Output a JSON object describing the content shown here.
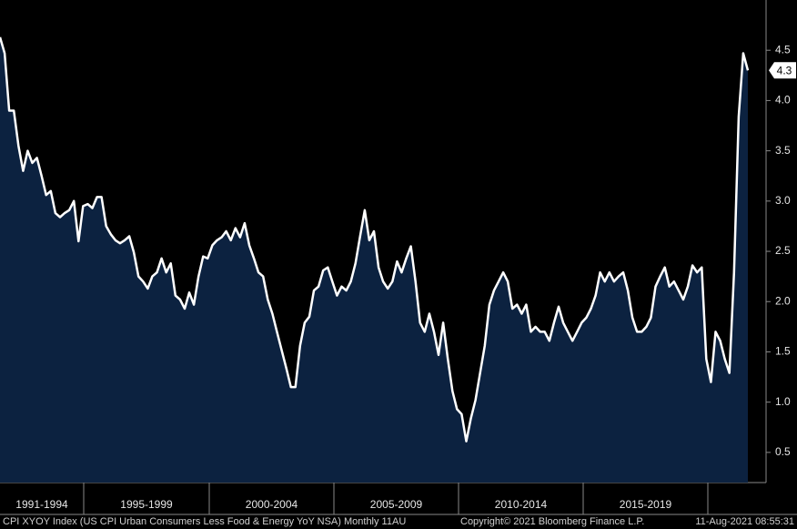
{
  "chart_data": {
    "type": "area",
    "series": [
      {
        "name": "CPI XYOY Index",
        "color": "#ffffff",
        "fill": "#0c2240",
        "values": [
          4.63,
          4.47,
          3.9,
          3.9,
          3.55,
          3.3,
          3.5,
          3.38,
          3.43,
          3.25,
          3.06,
          3.1,
          2.88,
          2.84,
          2.88,
          2.91,
          3.0,
          2.6,
          2.95,
          2.97,
          2.93,
          3.04,
          3.04,
          2.75,
          2.67,
          2.61,
          2.58,
          2.61,
          2.65,
          2.49,
          2.25,
          2.2,
          2.13,
          2.25,
          2.29,
          2.43,
          2.29,
          2.38,
          2.06,
          2.02,
          1.93,
          2.09,
          1.97,
          2.25,
          2.45,
          2.43,
          2.56,
          2.61,
          2.64,
          2.7,
          2.61,
          2.73,
          2.64,
          2.78,
          2.56,
          2.43,
          2.29,
          2.25,
          2.02,
          1.88,
          1.7,
          1.52,
          1.34,
          1.15,
          1.15,
          1.56,
          1.79,
          1.85,
          2.11,
          2.15,
          2.31,
          2.34,
          2.2,
          2.06,
          2.15,
          2.11,
          2.2,
          2.38,
          2.65,
          2.91,
          2.61,
          2.7,
          2.34,
          2.2,
          2.13,
          2.2,
          2.4,
          2.29,
          2.43,
          2.55,
          2.2,
          1.79,
          1.7,
          1.88,
          1.7,
          1.47,
          1.79,
          1.43,
          1.11,
          0.93,
          0.88,
          0.61,
          0.84,
          1.02,
          1.29,
          1.56,
          1.97,
          2.11,
          2.2,
          2.29,
          2.2,
          1.93,
          1.97,
          1.88,
          1.97,
          1.7,
          1.75,
          1.7,
          1.7,
          1.61,
          1.79,
          1.95,
          1.79,
          1.7,
          1.61,
          1.7,
          1.79,
          1.84,
          1.93,
          2.06,
          2.29,
          2.2,
          2.29,
          2.2,
          2.25,
          2.29,
          2.11,
          1.84,
          1.7,
          1.7,
          1.75,
          1.84,
          2.15,
          2.25,
          2.34,
          2.15,
          2.2,
          2.11,
          2.02,
          2.15,
          2.36,
          2.29,
          2.34,
          1.43,
          1.2,
          1.7,
          1.61,
          1.43,
          1.29,
          2.29,
          3.84,
          4.47,
          4.3
        ]
      }
    ],
    "periods": [
      "1991-1994",
      "1995-1999",
      "2000-2004",
      "2005-2009",
      "2010-2014",
      "2015-2019"
    ],
    "ylim": [
      0.2,
      5.0
    ],
    "yticks": [
      0.5,
      {
        "value": 1,
        "label": "1.0"
      },
      1.5,
      {
        "value": 2,
        "label": "2.0"
      },
      2.5,
      {
        "value": 3,
        "label": "3.0"
      },
      3.5,
      {
        "value": 4,
        "label": "4.0"
      },
      4.5
    ],
    "footer": {
      "description": "CPI XYOY Index (US CPI Urban Consumers Less Food & Energy YoY NSA)  Monthly 11AU",
      "copyright": "Copyright© 2021 Bloomberg Finance L.P.",
      "timestamp": "11-Aug-2021 08:55:31"
    }
  }
}
